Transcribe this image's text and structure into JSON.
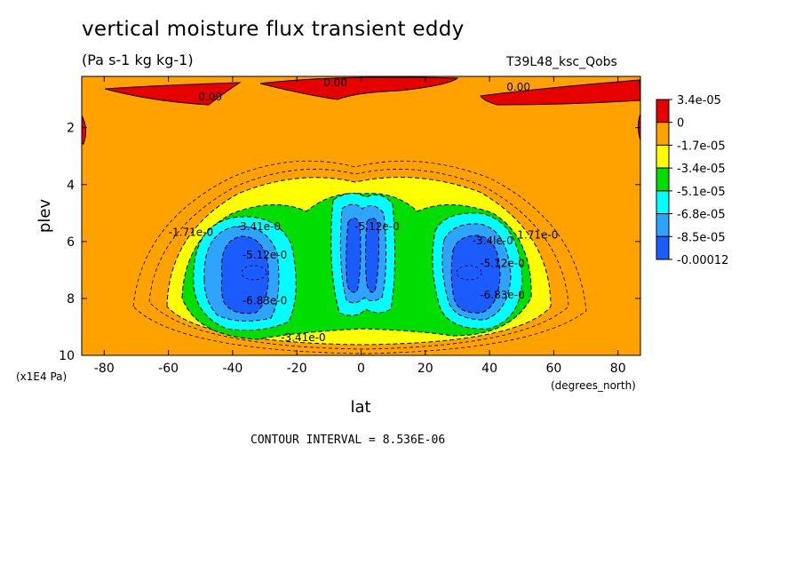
{
  "title": "vertical moisture flux transient eddy",
  "subtitle": "(Pa s-1 kg kg-1)",
  "run_id": "T39L48_ksc_Qobs",
  "contour_interval_text": "CONTOUR INTERVAL = 8.536E-06",
  "colors": {
    "red": "#e60000",
    "orange": "#ffa200",
    "yellow": "#ffff00",
    "green": "#00dd00",
    "cyan": "#00ffff",
    "mid_blue": "#2da4ff",
    "deep_blue": "#1a5cff"
  },
  "chart_data": {
    "type": "heatmap",
    "subtype": "filled-contour",
    "title": "vertical moisture flux transient eddy",
    "subtitle": "(Pa s-1 kg kg-1)",
    "xlabel": "lat",
    "x_unit_label": "(degrees_north)",
    "ylabel": "plev",
    "y_unit_label": "(x1E4 Pa)",
    "xlim": [
      -87,
      87
    ],
    "ylim": [
      10,
      0.2
    ],
    "x_ticks": [
      -80,
      -60,
      -40,
      -20,
      0,
      20,
      40,
      60,
      80
    ],
    "x_tick_labels": [
      "-80",
      "-60",
      "-40",
      "-20",
      "0",
      "20",
      "40",
      "60",
      "80"
    ],
    "y_ticks": [
      2,
      4,
      6,
      8,
      10
    ],
    "y_tick_labels": [
      "2",
      "4",
      "6",
      "8",
      "10"
    ],
    "contour_interval": 8.536e-06,
    "legend": {
      "position": "right",
      "colors": [
        "#e60000",
        "#ffa200",
        "#ffff00",
        "#00dd00",
        "#00ffff",
        "#2da4ff",
        "#1a5cff"
      ],
      "labels": [
        "3.4e-05",
        "0",
        "-1.7e-05",
        "-3.4e-05",
        "-5.1e-05",
        "-6.8e-05",
        "-8.5e-05",
        "-0.00012"
      ]
    },
    "contour_labels": [
      {
        "text": "0.00",
        "lat": -47,
        "plev": 1.05
      },
      {
        "text": "0.00",
        "lat": -8,
        "plev": 0.55
      },
      {
        "text": "0.00",
        "lat": 49,
        "plev": 0.7
      },
      {
        "text": "-1.71e-0",
        "lat": -53,
        "plev": 5.8
      },
      {
        "text": "1.71e-0",
        "lat": 55,
        "plev": 5.9
      },
      {
        "text": "-3.41e-0",
        "lat": -32,
        "plev": 5.6
      },
      {
        "text": "-3.41e-0",
        "lat": -18,
        "plev": 9.5
      },
      {
        "text": "-3.4le-0",
        "lat": 41,
        "plev": 6.1
      },
      {
        "text": "-5.12e-0",
        "lat": -30,
        "plev": 6.6
      },
      {
        "text": "-5.12e-0",
        "lat": 44,
        "plev": 6.9
      },
      {
        "text": "-6.83e-0",
        "lat": -30,
        "plev": 8.2
      },
      {
        "text": "-6.83e-0",
        "lat": 44,
        "plev": 8.0
      },
      {
        "text": "-5.12e-0",
        "lat": 5,
        "plev": 5.6
      }
    ]
  }
}
